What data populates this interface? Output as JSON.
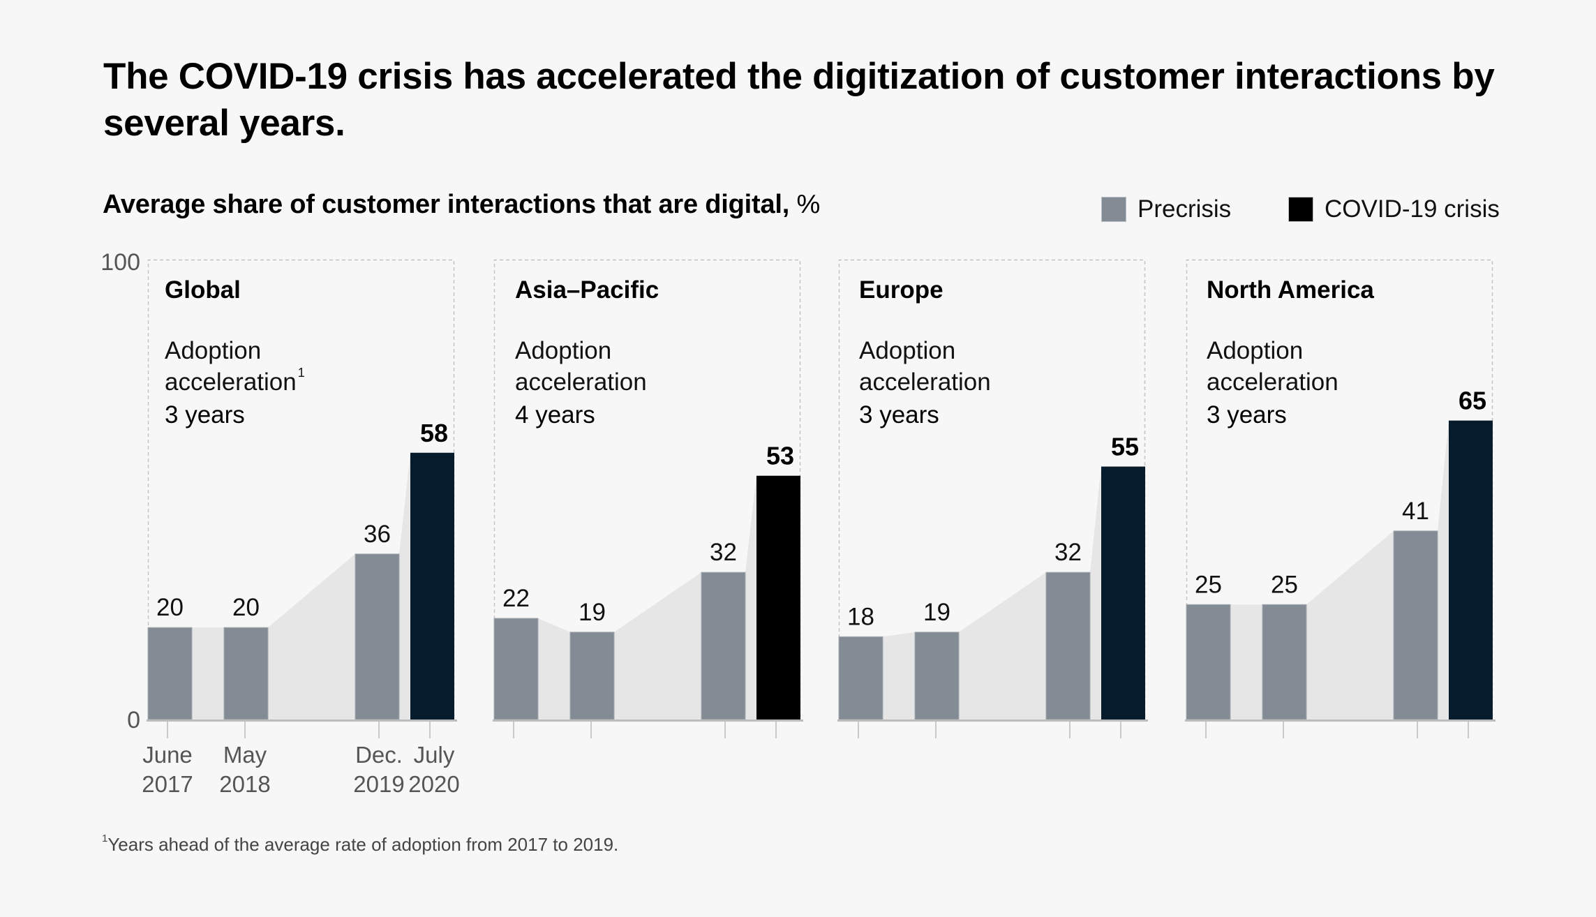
{
  "title": "The COVID-19 crisis has accelerated the digitization of customer interactions by several years.",
  "subtitle": {
    "main": "Average share of customer interactions that are digital,",
    "unit": "%"
  },
  "legend": [
    {
      "label": "Precrisis",
      "color": "#838c94"
    },
    {
      "label": "COVID-19 crisis",
      "color": "#000000"
    }
  ],
  "footnote": {
    "marker": "1",
    "text": "Years ahead of the average rate of adoption from 2017 to 2019."
  },
  "chart_data": {
    "type": "bar",
    "title": "Average share of customer interactions that are digital, %",
    "xlabel": "",
    "ylabel": "%",
    "ylim": [
      0,
      100
    ],
    "yticks": [
      "0",
      "100"
    ],
    "grid": false,
    "legend_position": "top-right",
    "categories": [
      "June 2017",
      "May 2018",
      "Dec. 2019",
      "July 2020"
    ],
    "category_lines": [
      [
        "June",
        "2017"
      ],
      [
        "May",
        "2018"
      ],
      [
        "Dec.",
        "2019"
      ],
      [
        "July",
        "2020"
      ]
    ],
    "colors": {
      "precrisis": "#838c94",
      "crisis": "#061c2c",
      "crisis_asia": "#000000",
      "area": "#e6e6e6"
    },
    "panels": [
      {
        "name": "Global",
        "acceleration_label": [
          "Adoption",
          "acceleration"
        ],
        "footnote_marker": "1",
        "acceleration_value": "3 years",
        "values": [
          20,
          20,
          36,
          58
        ],
        "crisis_color": "#061c2c",
        "show_xlabels": true
      },
      {
        "name": "Asia–Pacific",
        "acceleration_label": [
          "Adoption",
          "acceleration"
        ],
        "footnote_marker": "",
        "acceleration_value": "4 years",
        "values": [
          22,
          19,
          32,
          53
        ],
        "crisis_color": "#000000",
        "show_xlabels": false
      },
      {
        "name": "Europe",
        "acceleration_label": [
          "Adoption",
          "acceleration"
        ],
        "footnote_marker": "",
        "acceleration_value": "3 years",
        "values": [
          18,
          19,
          32,
          55
        ],
        "crisis_color": "#061c2c",
        "show_xlabels": false
      },
      {
        "name": "North America",
        "acceleration_label": [
          "Adoption",
          "acceleration"
        ],
        "footnote_marker": "",
        "acceleration_value": "3 years",
        "values": [
          25,
          25,
          41,
          65
        ],
        "crisis_color": "#061c2c",
        "show_xlabels": false
      }
    ],
    "series": [
      {
        "name": "Precrisis",
        "categories": [
          "June 2017",
          "May 2018",
          "Dec. 2019"
        ]
      },
      {
        "name": "COVID-19 crisis",
        "categories": [
          "July 2020"
        ]
      }
    ]
  }
}
